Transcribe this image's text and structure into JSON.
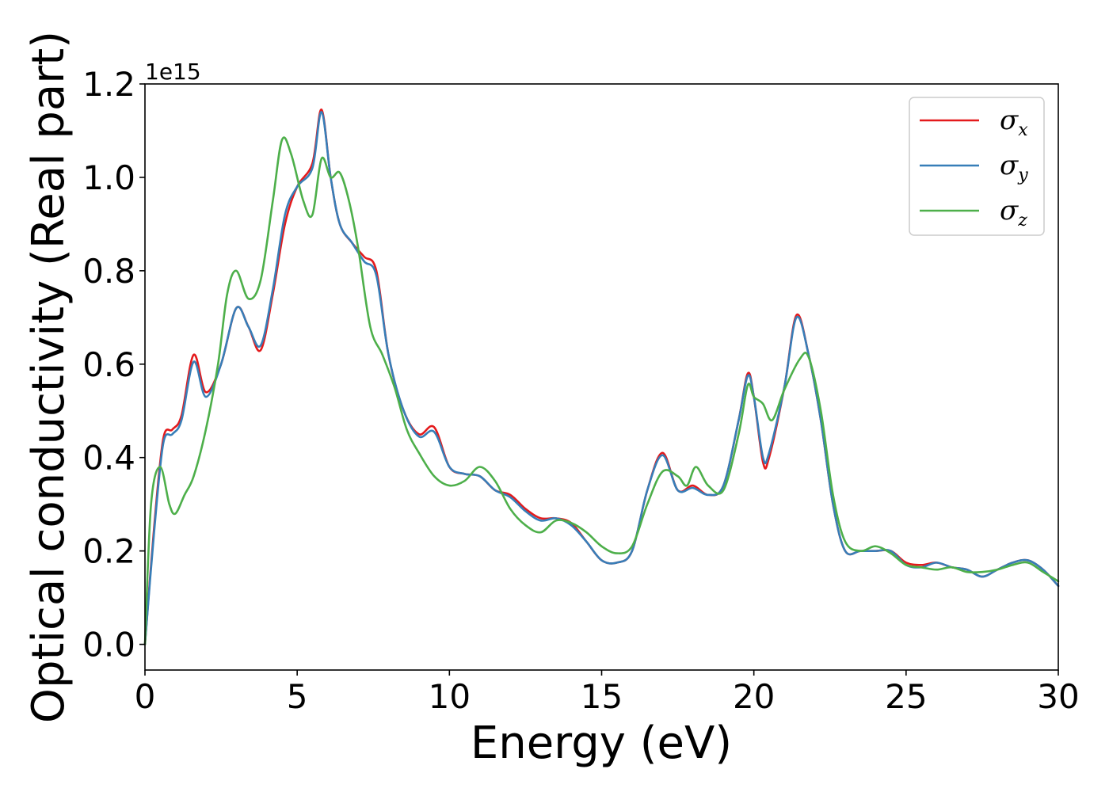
{
  "chart_data": {
    "type": "line",
    "xlabel": "Energy (eV)",
    "ylabel": "Optical conductivity (Real part)",
    "y_offset_label": "1e15",
    "xlim": [
      0,
      30
    ],
    "ylim": [
      -0.055,
      1.2
    ],
    "xticks": [
      0,
      5,
      10,
      15,
      20,
      25,
      30
    ],
    "xtick_labels": [
      "0",
      "5",
      "10",
      "15",
      "20",
      "25",
      "30"
    ],
    "yticks": [
      0.0,
      0.2,
      0.4,
      0.6,
      0.8,
      1.0,
      1.2
    ],
    "ytick_labels": [
      "0.0",
      "0.2",
      "0.4",
      "0.6",
      "0.8",
      "1.0",
      "1.2"
    ],
    "grid": false,
    "legend_position": "top-right",
    "series": [
      {
        "name": "σx",
        "symbol": "σ",
        "subscript": "x",
        "color": "#e41a1c",
        "x": [
          0,
          0.3,
          0.6,
          0.9,
          1.2,
          1.6,
          2.0,
          2.5,
          3.0,
          3.4,
          3.8,
          4.2,
          4.6,
          5.0,
          5.5,
          5.8,
          6.1,
          6.4,
          6.8,
          7.2,
          7.6,
          8.0,
          8.5,
          9.0,
          9.5,
          10.0,
          10.5,
          11.0,
          11.5,
          12.0,
          12.5,
          13.0,
          13.5,
          14.0,
          14.5,
          15.0,
          15.5,
          16.0,
          16.5,
          17.0,
          17.5,
          18.0,
          18.5,
          19.0,
          19.5,
          19.8,
          20.0,
          20.3,
          20.5,
          21.0,
          21.4,
          21.8,
          22.2,
          22.6,
          23.0,
          23.5,
          24.0,
          24.5,
          25.0,
          25.5,
          26.0,
          26.5,
          27.0,
          27.5,
          28.0,
          28.5,
          29.0,
          29.5,
          30.0
        ],
        "y": [
          0.0,
          0.25,
          0.44,
          0.46,
          0.49,
          0.62,
          0.54,
          0.6,
          0.72,
          0.68,
          0.63,
          0.75,
          0.9,
          0.98,
          1.03,
          1.145,
          1.0,
          0.9,
          0.86,
          0.83,
          0.8,
          0.62,
          0.5,
          0.45,
          0.465,
          0.38,
          0.365,
          0.36,
          0.33,
          0.32,
          0.29,
          0.27,
          0.27,
          0.26,
          0.22,
          0.18,
          0.175,
          0.2,
          0.33,
          0.41,
          0.33,
          0.34,
          0.32,
          0.34,
          0.48,
          0.58,
          0.53,
          0.39,
          0.4,
          0.55,
          0.705,
          0.62,
          0.48,
          0.3,
          0.2,
          0.2,
          0.2,
          0.2,
          0.175,
          0.17,
          0.175,
          0.165,
          0.16,
          0.145,
          0.16,
          0.175,
          0.18,
          0.16,
          0.125
        ]
      },
      {
        "name": "σy",
        "symbol": "σ",
        "subscript": "y",
        "color": "#377eb8",
        "x": [
          0,
          0.3,
          0.6,
          0.9,
          1.2,
          1.6,
          2.0,
          2.5,
          3.0,
          3.4,
          3.8,
          4.2,
          4.6,
          5.0,
          5.5,
          5.8,
          6.1,
          6.4,
          6.8,
          7.2,
          7.6,
          8.0,
          8.5,
          9.0,
          9.5,
          10.0,
          10.5,
          11.0,
          11.5,
          12.0,
          12.5,
          13.0,
          13.5,
          14.0,
          14.5,
          15.0,
          15.5,
          16.0,
          16.5,
          17.0,
          17.5,
          18.0,
          18.5,
          19.0,
          19.5,
          19.8,
          20.0,
          20.3,
          20.5,
          21.0,
          21.4,
          21.8,
          22.2,
          22.6,
          23.0,
          23.5,
          24.0,
          24.5,
          25.0,
          25.5,
          26.0,
          26.5,
          27.0,
          27.5,
          28.0,
          28.5,
          29.0,
          29.5,
          30.0
        ],
        "y": [
          0.0,
          0.24,
          0.43,
          0.45,
          0.48,
          0.605,
          0.53,
          0.6,
          0.72,
          0.68,
          0.64,
          0.76,
          0.92,
          0.98,
          1.02,
          1.14,
          1.0,
          0.9,
          0.86,
          0.82,
          0.79,
          0.62,
          0.5,
          0.445,
          0.455,
          0.38,
          0.365,
          0.36,
          0.33,
          0.315,
          0.285,
          0.265,
          0.27,
          0.255,
          0.22,
          0.18,
          0.175,
          0.2,
          0.33,
          0.405,
          0.33,
          0.335,
          0.32,
          0.34,
          0.48,
          0.575,
          0.53,
          0.4,
          0.41,
          0.55,
          0.7,
          0.62,
          0.48,
          0.3,
          0.2,
          0.2,
          0.2,
          0.2,
          0.17,
          0.165,
          0.175,
          0.165,
          0.16,
          0.145,
          0.16,
          0.175,
          0.18,
          0.16,
          0.125
        ]
      },
      {
        "name": "σz",
        "symbol": "σ",
        "subscript": "z",
        "color": "#4daf4a",
        "x": [
          0,
          0.2,
          0.5,
          0.8,
          1.0,
          1.3,
          1.6,
          2.0,
          2.4,
          2.7,
          3.0,
          3.4,
          3.8,
          4.2,
          4.5,
          4.8,
          5.2,
          5.5,
          5.8,
          6.1,
          6.4,
          6.7,
          7.0,
          7.4,
          7.8,
          8.2,
          8.6,
          9.0,
          9.5,
          10.0,
          10.5,
          11.0,
          11.5,
          12.0,
          12.5,
          13.0,
          13.5,
          14.0,
          14.5,
          15.0,
          15.5,
          16.0,
          16.5,
          17.0,
          17.5,
          17.8,
          18.1,
          18.5,
          19.0,
          19.5,
          19.8,
          20.0,
          20.3,
          20.6,
          21.0,
          21.5,
          21.8,
          22.2,
          22.6,
          23.0,
          23.5,
          24.0,
          24.5,
          25.0,
          25.5,
          26.0,
          26.5,
          27.0,
          27.5,
          28.0,
          28.5,
          29.0,
          29.5,
          30.0
        ],
        "y": [
          0.0,
          0.3,
          0.38,
          0.3,
          0.28,
          0.32,
          0.36,
          0.46,
          0.6,
          0.75,
          0.8,
          0.74,
          0.78,
          0.95,
          1.08,
          1.05,
          0.95,
          0.92,
          1.04,
          1.0,
          1.01,
          0.95,
          0.85,
          0.68,
          0.62,
          0.55,
          0.46,
          0.41,
          0.36,
          0.34,
          0.35,
          0.38,
          0.35,
          0.29,
          0.255,
          0.24,
          0.265,
          0.26,
          0.24,
          0.21,
          0.195,
          0.21,
          0.3,
          0.37,
          0.36,
          0.34,
          0.38,
          0.34,
          0.33,
          0.45,
          0.555,
          0.53,
          0.515,
          0.48,
          0.545,
          0.61,
          0.615,
          0.5,
          0.32,
          0.22,
          0.2,
          0.21,
          0.195,
          0.17,
          0.165,
          0.16,
          0.165,
          0.155,
          0.155,
          0.16,
          0.17,
          0.175,
          0.155,
          0.135
        ]
      }
    ]
  }
}
